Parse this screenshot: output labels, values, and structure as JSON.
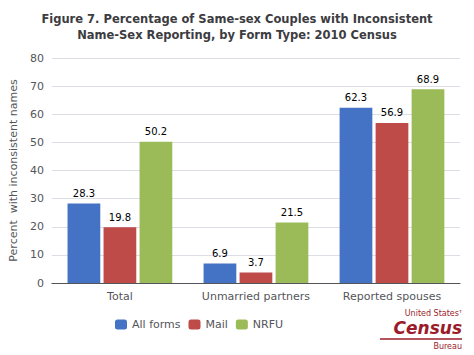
{
  "chart_data": {
    "type": "bar",
    "title": "Figure 7. Percentage of Same-sex Couples with Inconsistent\nName-Sex Reporting, by Form Type: 2010 Census",
    "y_label": "Percent  with inconsistent names",
    "categories": [
      "Total",
      "Unmarried partners",
      "Reported spouses"
    ],
    "series": [
      {
        "name": "All forms",
        "color": "#4472C4",
        "values": [
          28.3,
          6.9,
          62.3
        ]
      },
      {
        "name": "Mail",
        "color": "#BE4B48",
        "values": [
          19.8,
          3.7,
          56.9
        ]
      },
      {
        "name": "NRFU",
        "color": "#9BBB59",
        "values": [
          50.2,
          21.5,
          68.9
        ]
      }
    ],
    "ylim": [
      0,
      80
    ],
    "yticks": [
      0,
      10,
      20,
      30,
      40,
      50,
      60,
      70,
      80
    ],
    "grid": true,
    "legend": "bottom",
    "data_labels": true,
    "annotations": [
      {
        "text": "United Statesᵀ",
        "color": "#9B1B2A"
      },
      {
        "text": "Census",
        "color": "#9B1B2A"
      },
      {
        "text": "Bureau",
        "color": "#9B1B2A"
      }
    ]
  }
}
